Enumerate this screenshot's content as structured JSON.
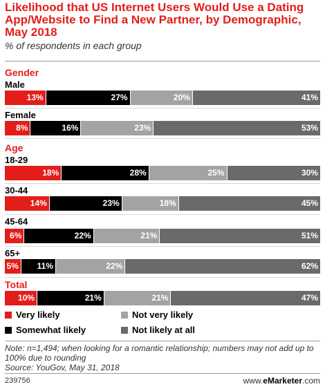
{
  "chart_data": {
    "type": "bar",
    "orientation": "horizontal-stacked-100",
    "title": "Likelihood that US Internet Users Would Use a Dating App/Website to Find a New Partner, by Demographic, May 2018",
    "subtitle": "% of respondents in each group",
    "series": [
      {
        "name": "Very likely",
        "color": "#e31d1a"
      },
      {
        "name": "Somewhat likely",
        "color": "#000000"
      },
      {
        "name": "Not very likely",
        "color": "#a3a3a3"
      },
      {
        "name": "Not likely at all",
        "color": "#6a6a6a"
      }
    ],
    "groups": [
      {
        "label": "Gender",
        "rows": [
          {
            "label": "Male",
            "values": [
              13,
              27,
              20,
              41
            ]
          },
          {
            "label": "Female",
            "values": [
              8,
              16,
              23,
              53
            ]
          }
        ]
      },
      {
        "label": "Age",
        "rows": [
          {
            "label": "18-29",
            "values": [
              18,
              28,
              25,
              30
            ]
          },
          {
            "label": "30-44",
            "values": [
              14,
              23,
              18,
              45
            ]
          },
          {
            "label": "45-64",
            "values": [
              6,
              22,
              21,
              51
            ]
          },
          {
            "label": "65+",
            "values": [
              5,
              11,
              22,
              62
            ]
          }
        ]
      },
      {
        "label": "Total",
        "rows": [
          {
            "label": "",
            "values": [
              10,
              21,
              21,
              47
            ]
          }
        ]
      }
    ],
    "value_suffix": "%",
    "legend_position": "bottom"
  },
  "note": "Note: n=1,494; when looking for a romantic relationship; numbers may not add up to 100% due to rounding",
  "source": "Source: YouGov, May 31, 2018",
  "footer": {
    "id": "239756",
    "brand_prefix": "www.",
    "brand_name": "eMarketer",
    "brand_suffix": ".com"
  }
}
